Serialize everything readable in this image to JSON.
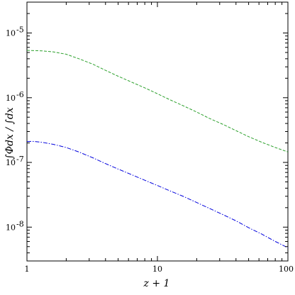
{
  "chart_data": {
    "type": "line",
    "title": "",
    "xlabel": "z + 1",
    "ylabel": "∫Φdx / ∫dx",
    "xscale": "log",
    "yscale": "log",
    "xlim": [
      1,
      100
    ],
    "ylim": [
      3e-09,
      3e-05
    ],
    "grid": false,
    "legend": "none",
    "x_ticks": [
      {
        "value": 1,
        "label": "1"
      },
      {
        "value": 10,
        "label": "10"
      },
      {
        "value": 100,
        "label": "100"
      }
    ],
    "y_ticks": [
      {
        "value": 1e-08,
        "base": "10",
        "exp": "-8"
      },
      {
        "value": 1e-07,
        "base": "10",
        "exp": "-7"
      },
      {
        "value": 1e-06,
        "base": "10",
        "exp": "-6"
      },
      {
        "value": 1e-05,
        "base": "10",
        "exp": "-5"
      }
    ],
    "series": [
      {
        "color": "#2ca02c",
        "style": "dashed",
        "x": [
          1.0,
          1.3,
          1.6,
          2.0,
          2.5,
          3.2,
          4.0,
          5.0,
          6.3,
          8.0,
          10.0,
          12.6,
          16.0,
          20.0,
          25.0,
          32.0,
          40.0,
          50.0,
          63.0,
          80.0,
          100.0
        ],
        "y": [
          5.4e-06,
          5.3e-06,
          5.1e-06,
          4.7e-06,
          4e-06,
          3.3e-06,
          2.65e-06,
          2.15e-06,
          1.75e-06,
          1.42e-06,
          1.15e-06,
          9.2e-07,
          7.4e-07,
          6e-07,
          4.8e-07,
          3.85e-07,
          3.1e-07,
          2.5e-07,
          2.05e-07,
          1.7e-07,
          1.45e-07
        ]
      },
      {
        "color": "#0000dd",
        "style": "dashdot",
        "x": [
          1.0,
          1.1,
          1.3,
          1.6,
          2.0,
          2.5,
          3.2,
          4.0,
          5.0,
          6.3,
          8.0,
          10.0,
          12.6,
          16.0,
          20.0,
          25.0,
          32.0,
          40.0,
          50.0,
          63.0,
          80.0,
          100.0
        ],
        "y": [
          2.1e-07,
          2.12e-07,
          2.05e-07,
          1.9e-07,
          1.7e-07,
          1.45e-07,
          1.18e-07,
          9.6e-08,
          7.9e-08,
          6.5e-08,
          5.3e-08,
          4.4e-08,
          3.6e-08,
          2.95e-08,
          2.4e-08,
          1.95e-08,
          1.55e-08,
          1.25e-08,
          9.8e-09,
          7.8e-09,
          6e-09,
          4.8e-09
        ]
      }
    ]
  }
}
